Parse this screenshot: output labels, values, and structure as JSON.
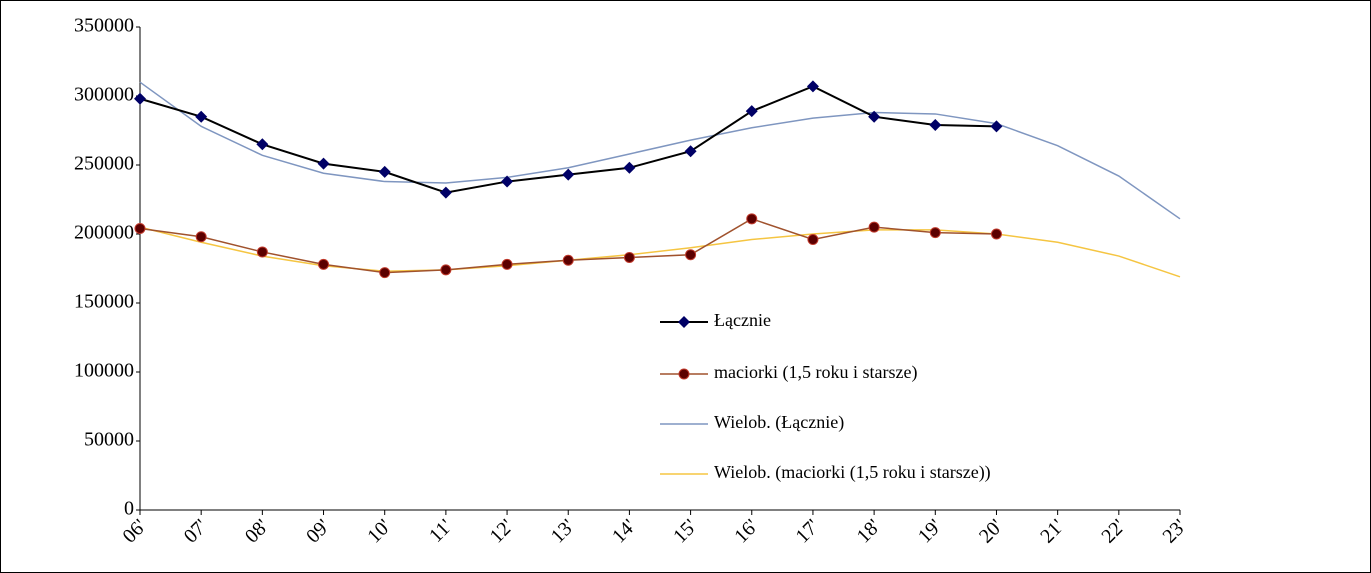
{
  "chart_data": {
    "type": "line",
    "categories": [
      "06'",
      "07'",
      "08'",
      "09'",
      "10'",
      "11'",
      "12'",
      "13'",
      "14'",
      "15'",
      "16'",
      "17'",
      "18'",
      "19'",
      "20'",
      "21'",
      "22'",
      "23'"
    ],
    "ylim": [
      0,
      350000
    ],
    "yticks": [
      0,
      50000,
      100000,
      150000,
      200000,
      250000,
      300000,
      350000
    ],
    "series": [
      {
        "name": "Łącznie",
        "color": "#000000",
        "marker_color": "#000066",
        "marker": "diamond",
        "values": [
          298000,
          285000,
          265000,
          251000,
          245000,
          230000,
          238000,
          243000,
          248000,
          260000,
          289000,
          307000,
          285000,
          279000,
          278000,
          null,
          null,
          null
        ]
      },
      {
        "name": "maciorki (1,5 roku i starsze)",
        "color": "#a0522d",
        "marker_color": "#5c0000",
        "marker": "circle",
        "values": [
          204000,
          198000,
          187000,
          178000,
          172000,
          174000,
          178000,
          181000,
          183000,
          185000,
          211000,
          196000,
          205000,
          201000,
          200000,
          null,
          null,
          null
        ]
      },
      {
        "name": "Wielob. (Łącznie)",
        "color": "#7f96c0",
        "values": [
          310000,
          278000,
          257000,
          244000,
          238000,
          237000,
          241000,
          248000,
          258000,
          268000,
          277000,
          284000,
          288000,
          287000,
          280000,
          264000,
          242000,
          211000
        ]
      },
      {
        "name": "Wielob. (maciorki (1,5 roku i starsze))",
        "color": "#f5c542",
        "values": [
          205000,
          194000,
          184000,
          177000,
          173000,
          174000,
          177000,
          181000,
          185000,
          190000,
          196000,
          200000,
          203000,
          203000,
          200000,
          194000,
          184000,
          169000
        ]
      }
    ]
  }
}
